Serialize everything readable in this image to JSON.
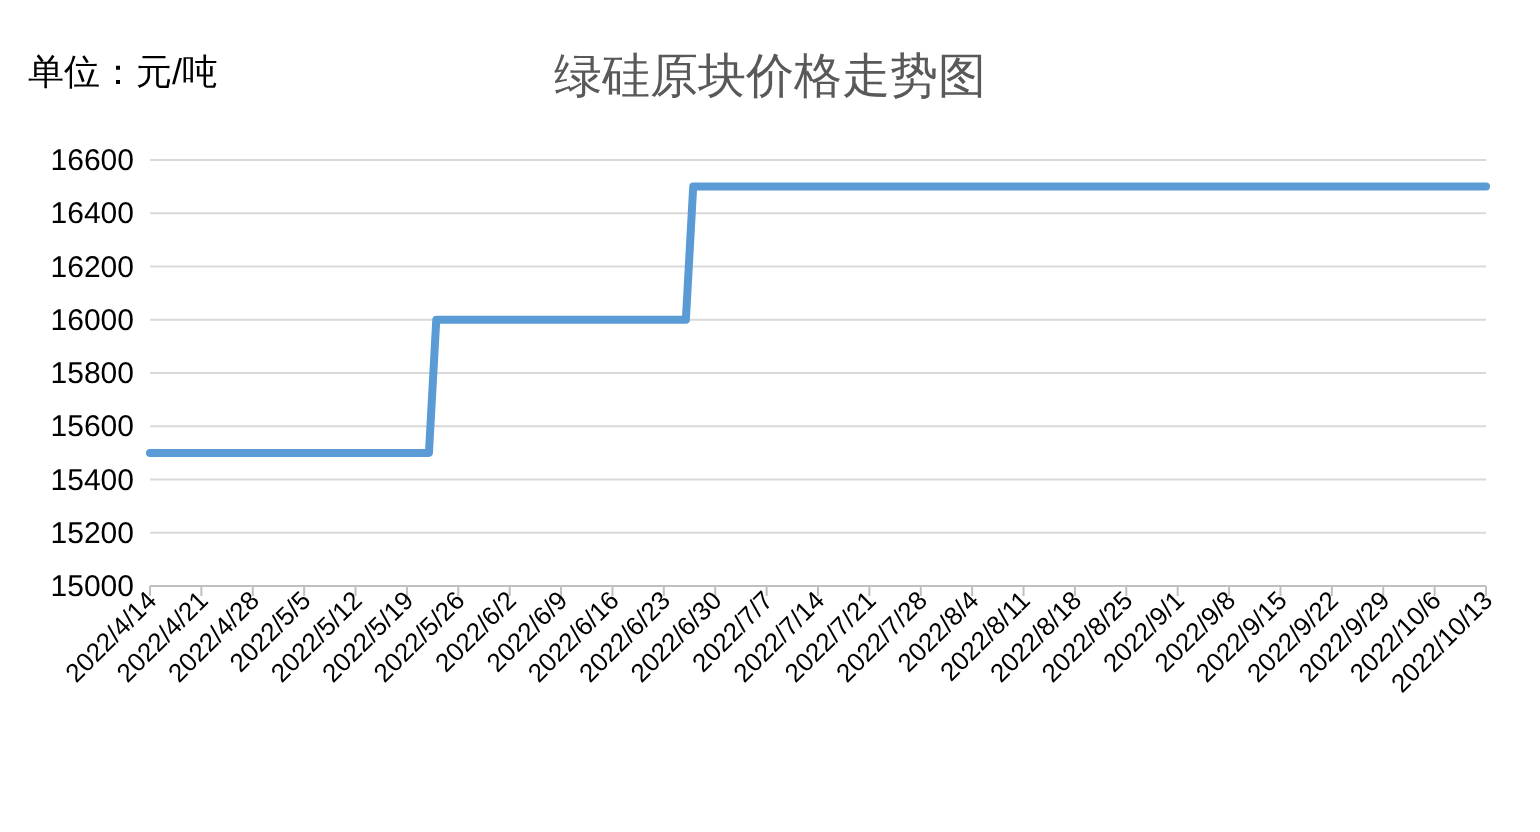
{
  "chart_data": {
    "type": "line",
    "title": "绿硅原块价格走势图",
    "annotations": [
      "单位：元/吨"
    ],
    "series": [
      {
        "color": "#5b9bd5",
        "x": [
          "2022-04-14",
          "2022-05-22",
          "2022-05-23",
          "2022-06-26",
          "2022-06-27",
          "2022-10-13"
        ],
        "values": [
          15500,
          15500,
          16000,
          16000,
          16500,
          16500
        ]
      }
    ],
    "xlim": [
      "2022-04-14",
      "2022-10-13"
    ],
    "xticks": [
      {
        "value": "2022-04-14",
        "label": "2022/4/14"
      },
      {
        "value": "2022-04-21",
        "label": "2022/4/21"
      },
      {
        "value": "2022-04-28",
        "label": "2022/4/28"
      },
      {
        "value": "2022-05-05",
        "label": "2022/5/5"
      },
      {
        "value": "2022-05-12",
        "label": "2022/5/12"
      },
      {
        "value": "2022-05-19",
        "label": "2022/5/19"
      },
      {
        "value": "2022-05-26",
        "label": "2022/5/26"
      },
      {
        "value": "2022-06-02",
        "label": "2022/6/2"
      },
      {
        "value": "2022-06-09",
        "label": "2022/6/9"
      },
      {
        "value": "2022-06-16",
        "label": "2022/6/16"
      },
      {
        "value": "2022-06-23",
        "label": "2022/6/23"
      },
      {
        "value": "2022-06-30",
        "label": "2022/6/30"
      },
      {
        "value": "2022-07-07",
        "label": "2022/7/7"
      },
      {
        "value": "2022-07-14",
        "label": "2022/7/14"
      },
      {
        "value": "2022-07-21",
        "label": "2022/7/21"
      },
      {
        "value": "2022-07-28",
        "label": "2022/7/28"
      },
      {
        "value": "2022-08-04",
        "label": "2022/8/4"
      },
      {
        "value": "2022-08-11",
        "label": "2022/8/11"
      },
      {
        "value": "2022-08-18",
        "label": "2022/8/18"
      },
      {
        "value": "2022-08-25",
        "label": "2022/8/25"
      },
      {
        "value": "2022-09-01",
        "label": "2022/9/1"
      },
      {
        "value": "2022-09-08",
        "label": "2022/9/8"
      },
      {
        "value": "2022-09-15",
        "label": "2022/9/15"
      },
      {
        "value": "2022-09-22",
        "label": "2022/9/22"
      },
      {
        "value": "2022-09-29",
        "label": "2022/9/29"
      },
      {
        "value": "2022-10-06",
        "label": "2022/10/6"
      },
      {
        "value": "2022-10-13",
        "label": "2022/10/13"
      }
    ],
    "ylim": [
      15000,
      16600
    ],
    "yticks": [
      15000,
      15200,
      15400,
      15600,
      15800,
      16000,
      16200,
      16400,
      16600
    ],
    "grid": "y",
    "marker": "none"
  }
}
